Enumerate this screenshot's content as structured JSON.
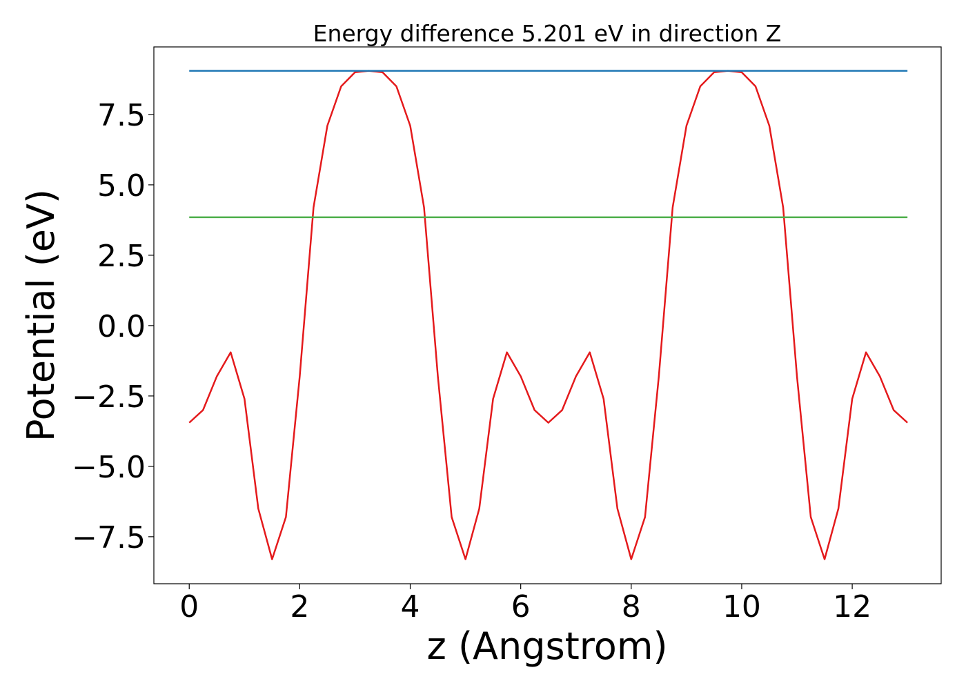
{
  "chart_data": {
    "type": "line",
    "title": "Energy difference 5.201 eV in direction Z",
    "x_label": "z (Angstrom)",
    "y_label": "Potential (eV)",
    "series": [
      {
        "color": "#e41a1c",
        "x": [
          0,
          0.25,
          0.5,
          0.75,
          1,
          1.25,
          1.5,
          1.75,
          2,
          2.25,
          2.5,
          2.75,
          3,
          3.25,
          3.5,
          3.75,
          4,
          4.25,
          4.5,
          4.75,
          5,
          5.25,
          5.5,
          5.75,
          6,
          6.25,
          6.5,
          6.75,
          7,
          7.25,
          7.5,
          7.75,
          8,
          8.25,
          8.5,
          8.75,
          9,
          9.25,
          9.5,
          9.75,
          10,
          10.25,
          10.5,
          10.75,
          11,
          11.25,
          11.5,
          11.75,
          12,
          12.25,
          12.5,
          12.75,
          13
        ],
        "values": [
          -3.45,
          -3.0,
          -1.8,
          -0.95,
          -2.6,
          -6.5,
          -8.3,
          -6.8,
          -1.8,
          4.2,
          7.1,
          8.5,
          9.0,
          9.05,
          9.0,
          8.5,
          7.1,
          4.2,
          -1.8,
          -6.8,
          -8.3,
          -6.5,
          -2.6,
          -0.95,
          -1.8,
          -3.0,
          -3.45,
          -3.0,
          -1.8,
          -0.95,
          -2.6,
          -6.5,
          -8.3,
          -6.8,
          -1.8,
          4.2,
          7.1,
          8.5,
          9.0,
          9.05,
          9.0,
          8.5,
          7.1,
          4.2,
          -1.8,
          -6.8,
          -8.3,
          -6.5,
          -2.6,
          -0.95,
          -1.8,
          -3.0,
          -3.45
        ]
      },
      {
        "color": "#1f77b4",
        "x": [
          0,
          13
        ],
        "values": [
          9.05,
          9.05
        ]
      },
      {
        "color": "#4daf4a",
        "x": [
          0,
          13
        ],
        "values": [
          3.849,
          3.849
        ]
      }
    ],
    "xlim": [
      -0.64,
      13.61
    ],
    "ylim": [
      -9.17,
      9.9
    ],
    "xticks": [
      0,
      2,
      4,
      6,
      8,
      10,
      12
    ],
    "yticks": [
      {
        "value": -7.5,
        "label": "−7.5"
      },
      {
        "value": -5,
        "label": "−5.0"
      },
      {
        "value": -2.5,
        "label": "−2.5"
      },
      {
        "value": 0,
        "label": "0.0"
      },
      {
        "value": 2.5,
        "label": "2.5"
      },
      {
        "value": 5,
        "label": "5.0"
      },
      {
        "value": 7.5,
        "label": "7.5"
      }
    ],
    "grid": false
  }
}
